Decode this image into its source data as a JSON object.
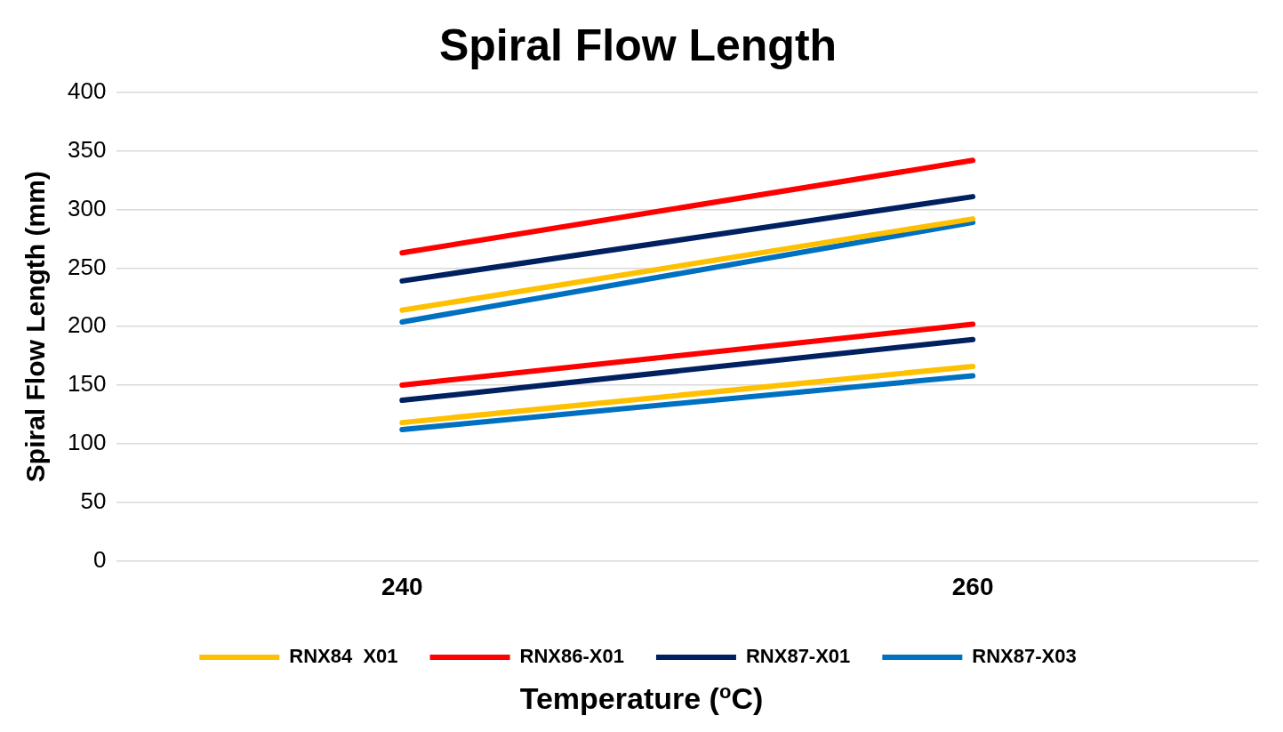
{
  "chart_data": {
    "type": "line",
    "title": "Spiral Flow Length",
    "xlabel": "Temperature ($^{o}$C)",
    "ylabel": "Spiral Flow Length (mm)",
    "categories": [
      "240",
      "260"
    ],
    "ylim": [
      0,
      400
    ],
    "yticks": [
      0,
      50,
      100,
      150,
      200,
      250,
      300,
      350,
      400
    ],
    "grid": "y",
    "legend": "bottom",
    "marker": "none",
    "line_style": "solid",
    "series": [
      {
        "name": "RNX84  X01",
        "color": "#ffc000",
        "values": [
          214,
          292
        ]
      },
      {
        "name": "RNX86-X01",
        "color": "#ff0000",
        "values": [
          263,
          342
        ]
      },
      {
        "name": "RNX87-X01",
        "color": "#002060",
        "values": [
          239,
          311
        ]
      },
      {
        "name": "RNX87-X03",
        "color": "#0070c0",
        "values": [
          204,
          289
        ]
      },
      {
        "color": "#ffc000",
        "values": [
          118,
          166
        ]
      },
      {
        "color": "#ff0000",
        "values": [
          150,
          202
        ]
      },
      {
        "color": "#002060",
        "values": [
          137,
          189
        ]
      },
      {
        "color": "#0070c0",
        "values": [
          112,
          158
        ]
      }
    ]
  }
}
